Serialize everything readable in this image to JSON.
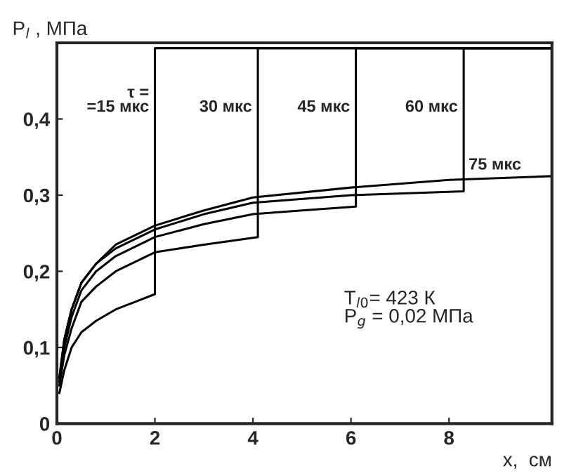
{
  "chart_data": {
    "type": "line",
    "xlabel": "x,  см",
    "ylabel": "P$_{l}$ , МПа",
    "xlim": [
      0,
      10.1
    ],
    "ylim": [
      0,
      0.5
    ],
    "xticks": [
      0,
      2,
      4,
      6,
      8
    ],
    "yticks": [
      {
        "value": 0,
        "label": "0"
      },
      {
        "value": 0.1,
        "label": "0,1"
      },
      {
        "value": 0.2,
        "label": "0,2"
      },
      {
        "value": 0.3,
        "label": "0,3"
      },
      {
        "value": 0.4,
        "label": "0,4"
      },
      {
        "value": 0.5,
        "label": null
      }
    ],
    "grid": false,
    "marker": "none",
    "line_style": "solid",
    "series": [
      {
        "name": "τ =\n=15 мкс",
        "color": "#000000",
        "x": [
          0.05,
          0.15,
          0.3,
          0.5,
          0.8,
          1.2,
          1.6,
          2.0,
          2.0,
          10.1
        ],
        "values": [
          0.04,
          0.07,
          0.1,
          0.12,
          0.135,
          0.15,
          0.16,
          0.17,
          0.493,
          0.493
        ]
      },
      {
        "name": "30 мкс",
        "color": "#000000",
        "x": [
          0.05,
          0.15,
          0.3,
          0.5,
          0.8,
          1.2,
          2.0,
          3.0,
          4.1,
          4.1,
          10.1
        ],
        "values": [
          0.05,
          0.09,
          0.125,
          0.16,
          0.18,
          0.2,
          0.225,
          0.235,
          0.245,
          0.493,
          0.493
        ]
      },
      {
        "name": "45 мкс",
        "color": "#000000",
        "x": [
          0.05,
          0.15,
          0.3,
          0.5,
          0.8,
          1.2,
          2.0,
          3.0,
          4.0,
          5.0,
          6.1,
          6.1,
          10.1
        ],
        "values": [
          0.055,
          0.1,
          0.14,
          0.175,
          0.2,
          0.22,
          0.245,
          0.262,
          0.275,
          0.28,
          0.285,
          0.493,
          0.493
        ]
      },
      {
        "name": "60 мкс",
        "color": "#000000",
        "x": [
          0.05,
          0.15,
          0.3,
          0.5,
          0.8,
          1.2,
          2.0,
          3.0,
          4.0,
          6.0,
          8.3,
          8.3,
          10.1
        ],
        "values": [
          0.06,
          0.11,
          0.15,
          0.185,
          0.21,
          0.23,
          0.255,
          0.275,
          0.29,
          0.3,
          0.305,
          0.493,
          0.493
        ]
      },
      {
        "name": "75 мкс",
        "color": "#000000",
        "x": [
          0.05,
          0.15,
          0.3,
          0.5,
          0.8,
          1.2,
          2.0,
          3.0,
          4.0,
          6.0,
          8.0,
          10.1
        ],
        "values": [
          0.06,
          0.11,
          0.15,
          0.185,
          0.21,
          0.235,
          0.26,
          0.28,
          0.297,
          0.31,
          0.32,
          0.325
        ]
      }
    ],
    "annotations": [
      "T$_{l0}$= 423 К\nP$_{g}$ = 0,02 МПа"
    ]
  }
}
